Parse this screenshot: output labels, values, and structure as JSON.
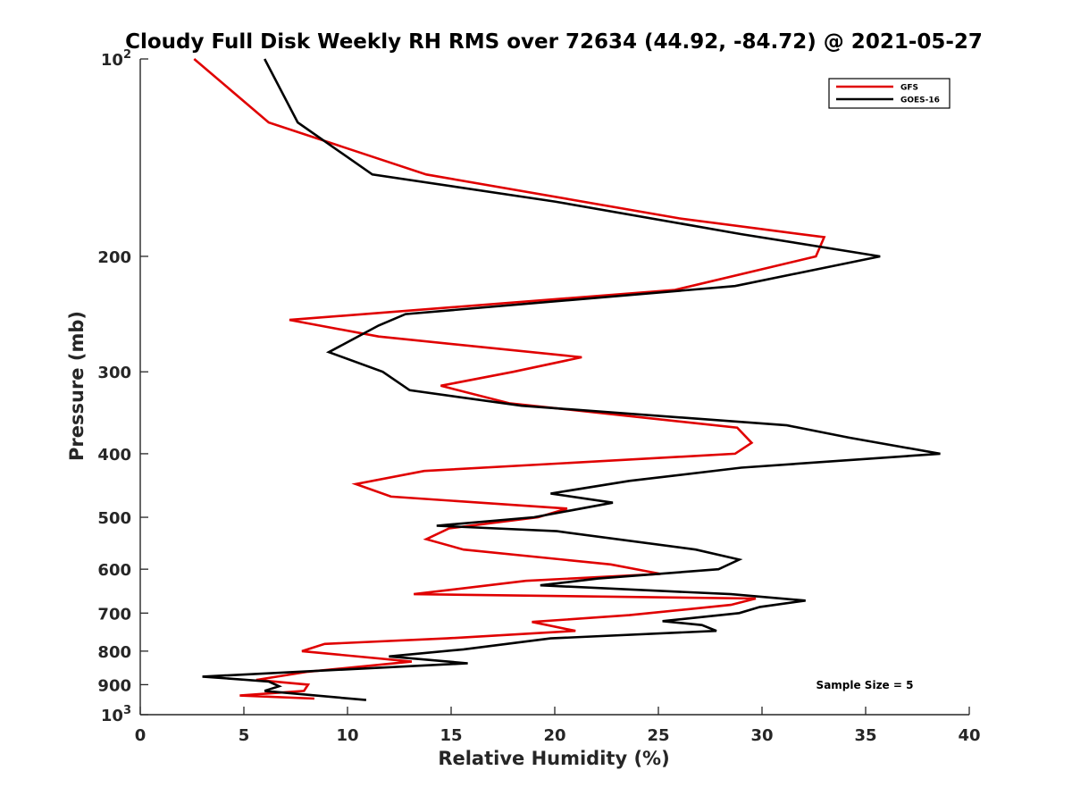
{
  "chart_data": {
    "type": "line",
    "title": "Cloudy Full Disk Weekly RH RMS over 72634 (44.92, -84.72) @ 2021-05-27",
    "xlabel": "Relative Humidity (%)",
    "ylabel": "Pressure (mb)",
    "xlim": [
      0,
      40
    ],
    "ylim": [
      100,
      1000
    ],
    "yscale": "log",
    "y_reversed": true,
    "xticks": [
      0,
      5,
      10,
      15,
      20,
      25,
      30,
      35,
      40
    ],
    "xtick_labels": [
      "0",
      "5",
      "10",
      "15",
      "20",
      "25",
      "30",
      "35",
      "40"
    ],
    "yticks": [
      100,
      200,
      300,
      400,
      500,
      600,
      700,
      800,
      900,
      1000
    ],
    "ytick_labels": [
      {
        "base": "10",
        "exp": "2"
      },
      {
        "base": "200",
        "exp": ""
      },
      {
        "base": "300",
        "exp": ""
      },
      {
        "base": "400",
        "exp": ""
      },
      {
        "base": "500",
        "exp": ""
      },
      {
        "base": "600",
        "exp": ""
      },
      {
        "base": "700",
        "exp": ""
      },
      {
        "base": "800",
        "exp": ""
      },
      {
        "base": "900",
        "exp": ""
      },
      {
        "base": "10",
        "exp": "3"
      }
    ],
    "grid": false,
    "legend_position": "top-right",
    "annotation": "Sample Size = 5",
    "series": [
      {
        "name": "GFS",
        "color": "#e00000",
        "points": [
          [
            2.6,
            100
          ],
          [
            6.2,
            125
          ],
          [
            13.8,
            150
          ],
          [
            26.0,
            175
          ],
          [
            33.0,
            187
          ],
          [
            32.6,
            200
          ],
          [
            25.8,
            225
          ],
          [
            7.2,
            250
          ],
          [
            11.5,
            265
          ],
          [
            21.3,
            285
          ],
          [
            18.0,
            300
          ],
          [
            14.5,
            315
          ],
          [
            17.8,
            335
          ],
          [
            28.8,
            365
          ],
          [
            29.5,
            385
          ],
          [
            28.7,
            400
          ],
          [
            13.7,
            425
          ],
          [
            10.4,
            445
          ],
          [
            12.1,
            465
          ],
          [
            20.6,
            485
          ],
          [
            19.2,
            500
          ],
          [
            14.9,
            520
          ],
          [
            13.8,
            540
          ],
          [
            15.6,
            560
          ],
          [
            22.7,
            590
          ],
          [
            25.1,
            610
          ],
          [
            18.6,
            625
          ],
          [
            13.2,
            655
          ],
          [
            29.7,
            665
          ],
          [
            28.5,
            680
          ],
          [
            23.6,
            705
          ],
          [
            18.9,
            722
          ],
          [
            21.0,
            745
          ],
          [
            14.8,
            765
          ],
          [
            8.9,
            780
          ],
          [
            7.8,
            800
          ],
          [
            13.1,
            830
          ],
          [
            8.1,
            860
          ],
          [
            5.6,
            885
          ],
          [
            8.1,
            900
          ],
          [
            7.9,
            920
          ],
          [
            4.8,
            935
          ],
          [
            8.4,
            945
          ]
        ]
      },
      {
        "name": "GOES-16",
        "color": "#000000",
        "points": [
          [
            6.0,
            100
          ],
          [
            7.6,
            125
          ],
          [
            11.2,
            150
          ],
          [
            20.0,
            165
          ],
          [
            29.0,
            185
          ],
          [
            35.7,
            200
          ],
          [
            28.7,
            222
          ],
          [
            12.8,
            245
          ],
          [
            11.5,
            255
          ],
          [
            9.1,
            280
          ],
          [
            11.7,
            300
          ],
          [
            13.0,
            320
          ],
          [
            18.4,
            338
          ],
          [
            31.2,
            362
          ],
          [
            34.2,
            378
          ],
          [
            38.6,
            400
          ],
          [
            29.0,
            420
          ],
          [
            23.6,
            440
          ],
          [
            19.8,
            460
          ],
          [
            22.8,
            475
          ],
          [
            19.0,
            500
          ],
          [
            14.3,
            515
          ],
          [
            20.1,
            525
          ],
          [
            26.8,
            560
          ],
          [
            28.9,
            580
          ],
          [
            27.9,
            600
          ],
          [
            22.1,
            620
          ],
          [
            19.3,
            635
          ],
          [
            28.5,
            655
          ],
          [
            32.1,
            670
          ],
          [
            29.9,
            685
          ],
          [
            28.9,
            700
          ],
          [
            25.2,
            720
          ],
          [
            27.1,
            730
          ],
          [
            27.8,
            745
          ],
          [
            19.8,
            765
          ],
          [
            15.6,
            795
          ],
          [
            12.0,
            815
          ],
          [
            15.8,
            835
          ],
          [
            3.0,
            875
          ],
          [
            6.2,
            890
          ],
          [
            6.7,
            905
          ],
          [
            6.0,
            920
          ],
          [
            10.9,
            950
          ]
        ]
      }
    ]
  }
}
